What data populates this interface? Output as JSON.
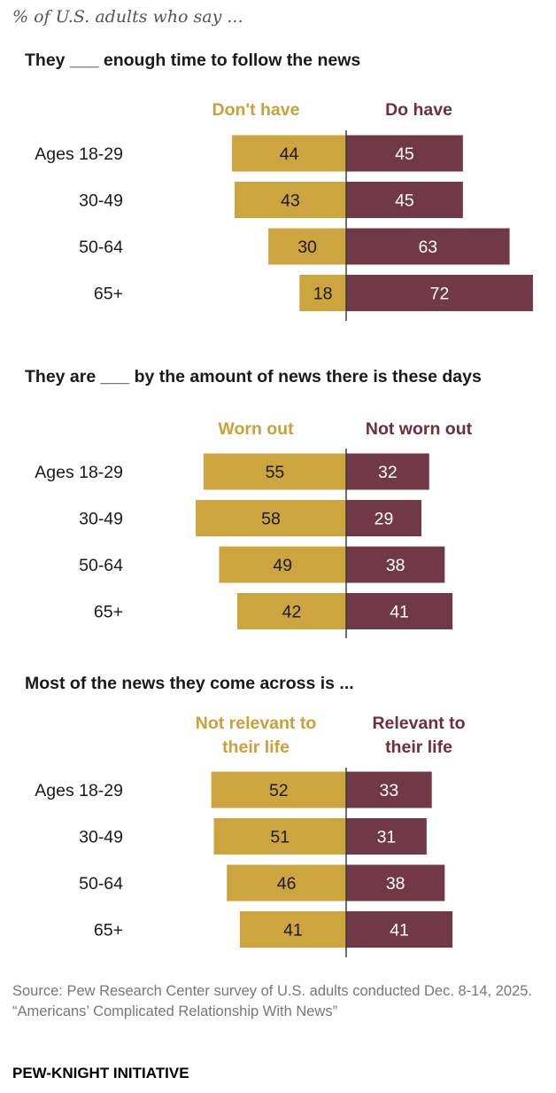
{
  "subtitle": "% of U.S. adults who say ...",
  "colors": {
    "left_bar": "#CDA53F",
    "right_bar": "#713947",
    "left_label": "#C9A13A",
    "right_label": "#6E2E3E",
    "value_text_left": "#1a1a1a",
    "value_text_right": "#ffffff"
  },
  "chart_data": [
    {
      "type": "bar",
      "orientation": "horizontal-diverging",
      "title": "They ___ enough time to follow the news",
      "categories": [
        "Ages 18-29",
        "30-49",
        "50-64",
        "65+"
      ],
      "series": [
        {
          "name": "Don't have",
          "values": [
            44,
            43,
            30,
            18
          ]
        },
        {
          "name": "Do have",
          "values": [
            45,
            45,
            63,
            72
          ]
        }
      ]
    },
    {
      "type": "bar",
      "orientation": "horizontal-diverging",
      "title": "They are ___ by the amount of news there is these days",
      "categories": [
        "Ages 18-29",
        "30-49",
        "50-64",
        "65+"
      ],
      "series": [
        {
          "name": "Worn out",
          "values": [
            55,
            58,
            49,
            42
          ]
        },
        {
          "name": "Not worn out",
          "values": [
            32,
            29,
            38,
            41
          ]
        }
      ]
    },
    {
      "type": "bar",
      "orientation": "horizontal-diverging",
      "title": "Most of the news they come across is ...",
      "categories": [
        "Ages 18-29",
        "30-49",
        "50-64",
        "65+"
      ],
      "series": [
        {
          "name": "Not relevant to their life",
          "label_lines": [
            "Not relevant to",
            "their life"
          ],
          "values": [
            52,
            51,
            46,
            41
          ]
        },
        {
          "name": "Relevant to their life",
          "label_lines": [
            "Relevant to",
            "their life"
          ],
          "values": [
            33,
            31,
            38,
            41
          ]
        }
      ]
    }
  ],
  "source": {
    "line1": "Source: Pew Research Center survey of U.S. adults conducted Dec. 8-14, 2025.",
    "line2": "“Americans’ Complicated Relationship With News”"
  },
  "brand": "PEW-KNIGHT INITIATIVE"
}
